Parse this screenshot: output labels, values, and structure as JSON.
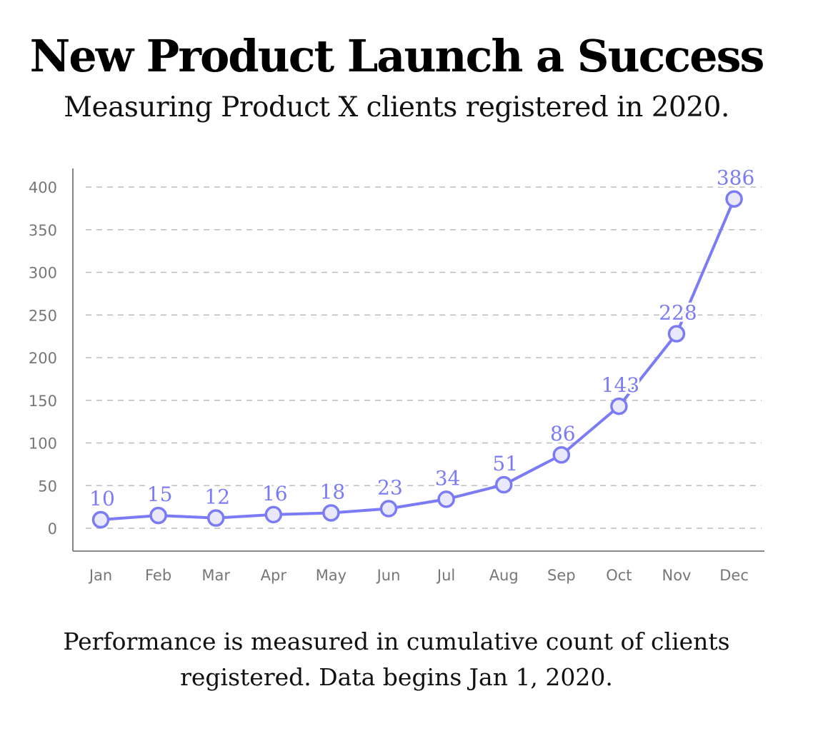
{
  "title": "New Product Launch a Success",
  "subtitle": "Measuring Product X clients registered in 2020.",
  "footnote": {
    "line1": "Performance is measured in cumulative count of clients",
    "line2": "registered. Data begins Jan 1, 2020."
  },
  "colors": {
    "series": "#7b7cf5",
    "marker_fill": "#e9e9fb",
    "grid": "#bdbdbd",
    "axis": "#777777",
    "tick_text": "#777777"
  },
  "chart_data": {
    "type": "line",
    "categories": [
      "Jan",
      "Feb",
      "Mar",
      "Apr",
      "May",
      "Jun",
      "Jul",
      "Aug",
      "Sep",
      "Oct",
      "Nov",
      "Dec"
    ],
    "series": [
      {
        "values": [
          10,
          15,
          12,
          16,
          18,
          23,
          34,
          51,
          86,
          143,
          228,
          386
        ],
        "data_labels": [
          "10",
          "15",
          "12",
          "16",
          "18",
          "23",
          "34",
          "51",
          "86",
          "143",
          "228",
          "386"
        ]
      }
    ],
    "yticks": [
      0,
      50,
      100,
      150,
      200,
      250,
      300,
      350,
      400
    ],
    "ylim": [
      0,
      400
    ],
    "grid": "horizontal dashed",
    "legend": "none"
  }
}
